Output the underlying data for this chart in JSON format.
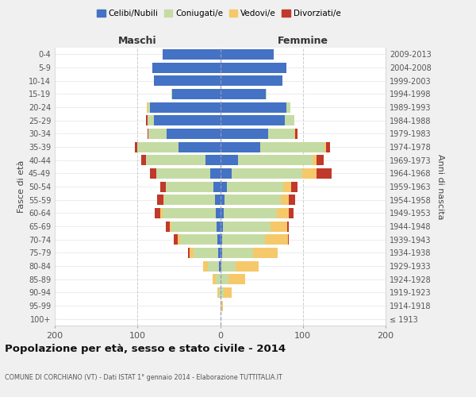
{
  "age_groups": [
    "100+",
    "95-99",
    "90-94",
    "85-89",
    "80-84",
    "75-79",
    "70-74",
    "65-69",
    "60-64",
    "55-59",
    "50-54",
    "45-49",
    "40-44",
    "35-39",
    "30-34",
    "25-29",
    "20-24",
    "15-19",
    "10-14",
    "5-9",
    "0-4"
  ],
  "birth_years": [
    "≤ 1913",
    "1914-1918",
    "1919-1923",
    "1924-1928",
    "1929-1933",
    "1934-1938",
    "1939-1943",
    "1944-1948",
    "1949-1953",
    "1954-1958",
    "1959-1963",
    "1964-1968",
    "1969-1973",
    "1974-1978",
    "1979-1983",
    "1984-1988",
    "1989-1993",
    "1994-1998",
    "1999-2003",
    "2004-2008",
    "2009-2013"
  ],
  "maschi": {
    "celibi": [
      0,
      0,
      0,
      0,
      1,
      2,
      3,
      4,
      5,
      6,
      8,
      12,
      18,
      50,
      65,
      80,
      85,
      58,
      80,
      82,
      70
    ],
    "coniugati": [
      0,
      0,
      1,
      5,
      14,
      30,
      45,
      55,
      65,
      62,
      58,
      65,
      72,
      50,
      22,
      8,
      3,
      1,
      0,
      0,
      0
    ],
    "vedovi": [
      0,
      0,
      2,
      4,
      6,
      5,
      3,
      2,
      2,
      1,
      0,
      0,
      0,
      0,
      0,
      0,
      1,
      0,
      0,
      0,
      0
    ],
    "divorziati": [
      0,
      0,
      0,
      0,
      0,
      2,
      5,
      5,
      7,
      7,
      6,
      8,
      5,
      3,
      1,
      2,
      0,
      0,
      0,
      0,
      0
    ]
  },
  "femmine": {
    "nubili": [
      0,
      0,
      0,
      0,
      1,
      2,
      2,
      3,
      4,
      5,
      8,
      14,
      22,
      48,
      58,
      78,
      80,
      55,
      75,
      80,
      65
    ],
    "coniugate": [
      0,
      1,
      4,
      10,
      18,
      38,
      52,
      58,
      65,
      68,
      68,
      85,
      90,
      78,
      32,
      12,
      5,
      1,
      0,
      0,
      0
    ],
    "vedove": [
      0,
      2,
      10,
      20,
      28,
      30,
      28,
      20,
      14,
      10,
      10,
      18,
      5,
      2,
      1,
      0,
      0,
      0,
      0,
      0,
      0
    ],
    "divorziate": [
      0,
      0,
      0,
      0,
      0,
      0,
      1,
      2,
      6,
      8,
      8,
      18,
      8,
      5,
      3,
      0,
      0,
      0,
      0,
      0,
      0
    ]
  },
  "colors": {
    "celibi": "#4472c4",
    "coniugati": "#c5dba4",
    "vedovi": "#f5c96a",
    "divorziati": "#c0392b"
  },
  "title": "Popolazione per età, sesso e stato civile - 2014",
  "subtitle": "COMUNE DI CORCHIANO (VT) - Dati ISTAT 1° gennaio 2014 - Elaborazione TUTTITALIA.IT",
  "maschi_label": "Maschi",
  "femmine_label": "Femmine",
  "ylabel_left": "Fasce di età",
  "ylabel_right": "Anni di nascita",
  "xlim": 200,
  "legend_labels": [
    "Celibi/Nubili",
    "Coniugati/e",
    "Vedovi/e",
    "Divorziati/e"
  ]
}
